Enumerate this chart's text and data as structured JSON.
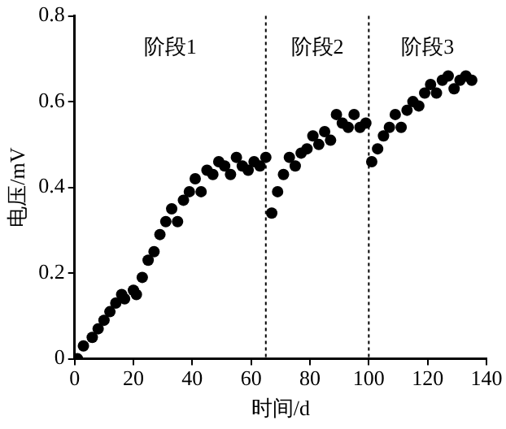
{
  "chart_data": {
    "type": "scatter",
    "xlabel": "时间/d",
    "ylabel": "电压/mV",
    "xlim": [
      0,
      140
    ],
    "xticks": [
      0,
      20,
      40,
      60,
      80,
      100,
      120,
      140
    ],
    "ylim": [
      0,
      0.8
    ],
    "yticks": [
      0,
      0.2,
      0.4,
      0.6,
      0.8
    ],
    "grid": false,
    "legend": false,
    "marker": "circle",
    "series": [
      {
        "color": "#000000",
        "x": [
          1,
          3,
          6,
          8,
          10,
          12,
          14,
          16,
          17,
          20,
          21,
          23,
          25,
          27,
          29,
          31,
          33,
          35,
          37,
          39,
          41,
          43,
          45,
          47,
          49,
          51,
          53,
          55,
          57,
          59,
          61,
          63,
          65,
          67,
          69,
          71,
          73,
          75,
          77,
          79,
          81,
          83,
          85,
          87,
          89,
          91,
          93,
          95,
          97,
          99,
          101,
          103,
          105,
          107,
          109,
          111,
          113,
          115,
          117,
          119,
          121,
          123,
          125,
          127,
          129,
          131,
          133,
          135
        ],
        "values": [
          0.0,
          0.03,
          0.05,
          0.07,
          0.09,
          0.11,
          0.13,
          0.15,
          0.14,
          0.16,
          0.15,
          0.19,
          0.23,
          0.25,
          0.29,
          0.32,
          0.35,
          0.32,
          0.37,
          0.39,
          0.42,
          0.39,
          0.44,
          0.43,
          0.46,
          0.45,
          0.43,
          0.47,
          0.45,
          0.44,
          0.46,
          0.45,
          0.47,
          0.34,
          0.39,
          0.43,
          0.47,
          0.45,
          0.48,
          0.49,
          0.52,
          0.5,
          0.53,
          0.51,
          0.57,
          0.55,
          0.54,
          0.57,
          0.54,
          0.55,
          0.46,
          0.49,
          0.52,
          0.54,
          0.57,
          0.54,
          0.58,
          0.6,
          0.59,
          0.62,
          0.64,
          0.62,
          0.65,
          0.66,
          0.63,
          0.65,
          0.66,
          0.65
        ]
      }
    ],
    "ref_lines": [
      {
        "axis": "x",
        "value": 65,
        "line_style": "dotted",
        "color": "#000000"
      },
      {
        "axis": "x",
        "value": 100,
        "line_style": "dotted",
        "color": "#000000"
      }
    ],
    "annotations": [
      "阶段1",
      "阶段2",
      "阶段3"
    ]
  }
}
